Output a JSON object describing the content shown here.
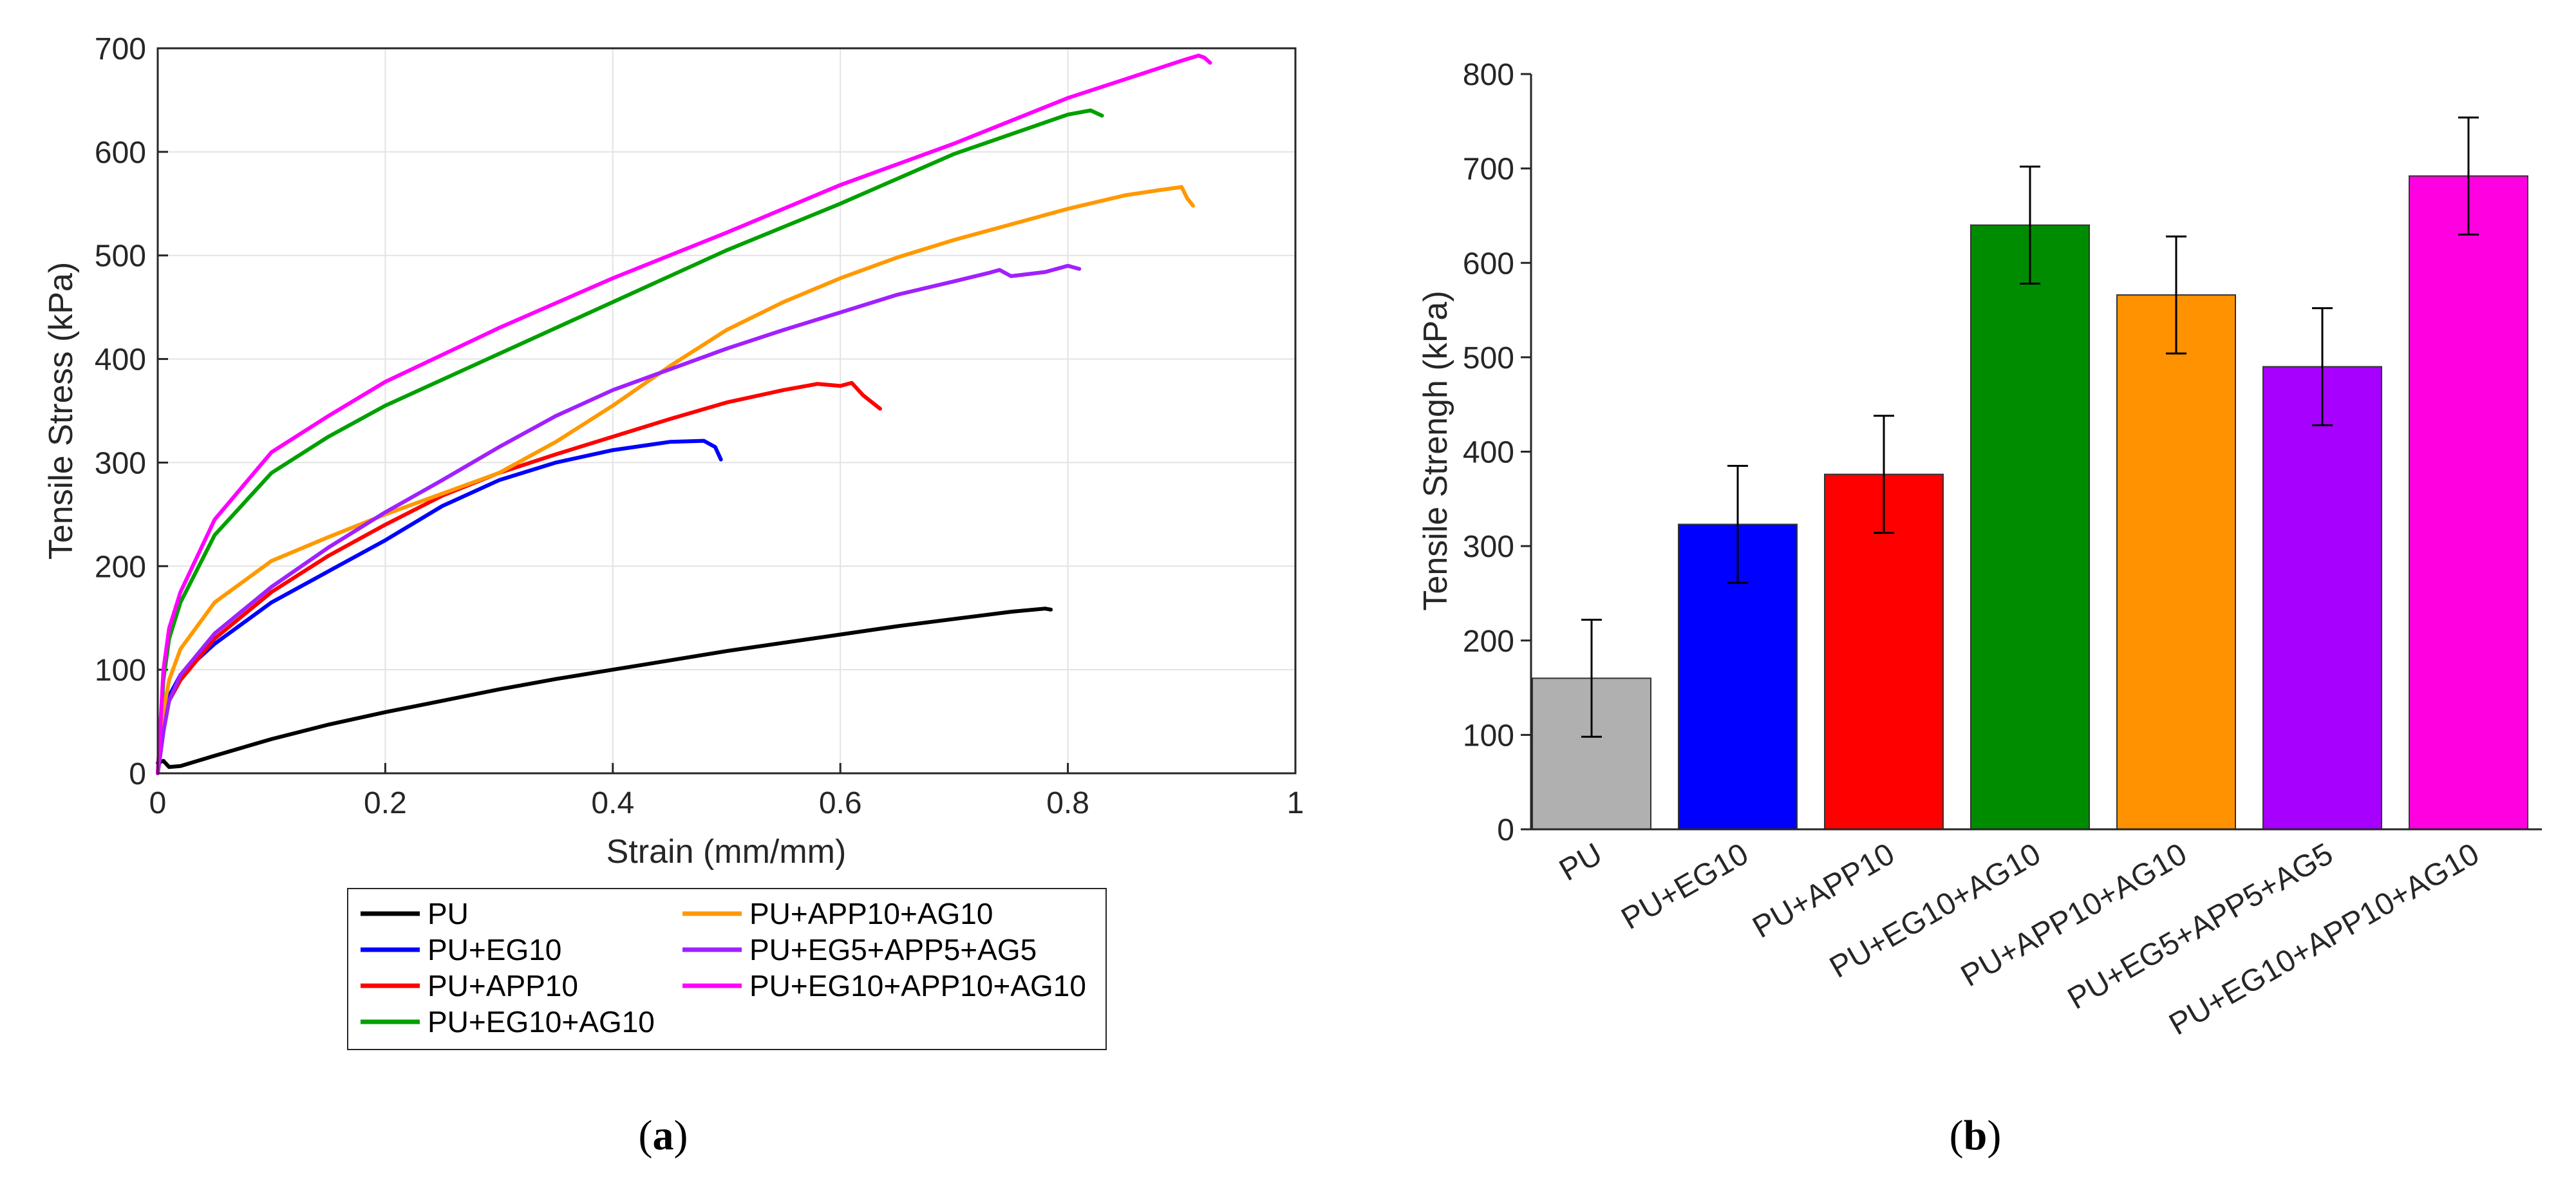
{
  "chart_data": [
    {
      "type": "line",
      "panel_label": "a",
      "xlabel": "Strain (mm/mm)",
      "ylabel": "Tensile Stress (kPa)",
      "xlim": [
        0,
        1
      ],
      "ylim": [
        0,
        700
      ],
      "xticks": [
        0,
        0.2,
        0.4,
        0.6,
        0.8,
        1
      ],
      "xtick_labels": [
        "0",
        "0.2",
        "0.4",
        "0.6",
        "0.8",
        "1"
      ],
      "yticks": [
        0,
        100,
        200,
        300,
        400,
        500,
        600,
        700
      ],
      "ytick_labels": [
        "0",
        "100",
        "200",
        "300",
        "400",
        "500",
        "600",
        "700"
      ],
      "grid": true,
      "legend_position": "below",
      "series": [
        {
          "name": "PU",
          "color": "#000000",
          "x": [
            0,
            0.005,
            0.01,
            0.02,
            0.05,
            0.1,
            0.15,
            0.2,
            0.25,
            0.3,
            0.35,
            0.4,
            0.45,
            0.5,
            0.55,
            0.6,
            0.65,
            0.7,
            0.75,
            0.78,
            0.785
          ],
          "y": [
            10,
            12,
            6,
            7,
            17,
            33,
            47,
            59,
            70,
            81,
            91,
            100,
            109,
            118,
            126,
            134,
            142,
            149,
            156,
            159,
            158
          ]
        },
        {
          "name": "PU+EG10",
          "color": "#0000ff",
          "x": [
            0,
            0.005,
            0.01,
            0.02,
            0.05,
            0.1,
            0.15,
            0.2,
            0.25,
            0.3,
            0.35,
            0.4,
            0.45,
            0.48,
            0.49,
            0.495
          ],
          "y": [
            0,
            40,
            75,
            95,
            125,
            165,
            195,
            225,
            258,
            283,
            300,
            312,
            320,
            321,
            315,
            303
          ]
        },
        {
          "name": "PU+APP10",
          "color": "#ff0000",
          "x": [
            0,
            0.005,
            0.01,
            0.02,
            0.05,
            0.1,
            0.15,
            0.2,
            0.25,
            0.3,
            0.35,
            0.4,
            0.45,
            0.5,
            0.55,
            0.58,
            0.6,
            0.61,
            0.62,
            0.635
          ],
          "y": [
            0,
            45,
            70,
            90,
            130,
            175,
            210,
            240,
            268,
            290,
            308,
            325,
            342,
            358,
            370,
            376,
            374,
            377,
            365,
            352
          ]
        },
        {
          "name": "PU+EG10+AG10",
          "color": "#00a000",
          "x": [
            0,
            0.005,
            0.01,
            0.02,
            0.05,
            0.1,
            0.15,
            0.2,
            0.3,
            0.4,
            0.5,
            0.6,
            0.7,
            0.8,
            0.82,
            0.83
          ],
          "y": [
            0,
            90,
            130,
            165,
            230,
            290,
            325,
            355,
            405,
            455,
            505,
            550,
            598,
            636,
            640,
            635
          ]
        },
        {
          "name": "PU+APP10+AG10",
          "color": "#ff9900",
          "x": [
            0,
            0.005,
            0.01,
            0.02,
            0.05,
            0.1,
            0.15,
            0.2,
            0.25,
            0.3,
            0.35,
            0.4,
            0.45,
            0.5,
            0.55,
            0.6,
            0.65,
            0.7,
            0.75,
            0.8,
            0.85,
            0.88,
            0.9,
            0.905,
            0.91
          ],
          "y": [
            0,
            60,
            90,
            120,
            165,
            205,
            228,
            250,
            270,
            290,
            320,
            355,
            393,
            428,
            455,
            478,
            498,
            515,
            530,
            545,
            558,
            563,
            566,
            555,
            548
          ]
        },
        {
          "name": "PU+EG5+APP5+AG5",
          "color": "#a020ff",
          "x": [
            0,
            0.005,
            0.01,
            0.02,
            0.05,
            0.1,
            0.15,
            0.2,
            0.25,
            0.3,
            0.35,
            0.4,
            0.45,
            0.5,
            0.55,
            0.6,
            0.65,
            0.7,
            0.73,
            0.74,
            0.75,
            0.78,
            0.8,
            0.81
          ],
          "y": [
            0,
            40,
            70,
            95,
            135,
            180,
            218,
            252,
            283,
            315,
            345,
            370,
            390,
            410,
            428,
            445,
            462,
            475,
            483,
            486,
            480,
            484,
            490,
            487
          ]
        },
        {
          "name": "PU+EG10+APP10+AG10",
          "color": "#ff00ff",
          "x": [
            0,
            0.005,
            0.01,
            0.02,
            0.05,
            0.1,
            0.15,
            0.2,
            0.3,
            0.4,
            0.5,
            0.6,
            0.7,
            0.8,
            0.85,
            0.9,
            0.915,
            0.92,
            0.925
          ],
          "y": [
            0,
            100,
            140,
            175,
            245,
            310,
            345,
            378,
            430,
            478,
            522,
            568,
            608,
            652,
            670,
            688,
            693,
            691,
            686
          ]
        }
      ]
    },
    {
      "type": "bar",
      "panel_label": "b",
      "xlabel": "",
      "ylabel": "Tensile Strengh (kPa)",
      "ylim": [
        0,
        800
      ],
      "yticks": [
        0,
        100,
        200,
        300,
        400,
        500,
        600,
        700,
        800
      ],
      "ytick_labels": [
        "0",
        "100",
        "200",
        "300",
        "400",
        "500",
        "600",
        "700",
        "800"
      ],
      "categories": [
        "PU",
        "PU+EG10",
        "PU+APP10",
        "PU+EG10+AG10",
        "PU+APP10+AG10",
        "PU+EG5+APP5+AG5",
        "PU+EG10+APP10+AG10"
      ],
      "values": [
        160,
        323,
        376,
        640,
        566,
        490,
        692
      ],
      "error": [
        62,
        62,
        62,
        62,
        62,
        62,
        62
      ],
      "colors": [
        "#b0b0b0",
        "#0000ff",
        "#ff0000",
        "#008c00",
        "#ff9200",
        "#a700ff",
        "#ff00e0"
      ]
    }
  ]
}
